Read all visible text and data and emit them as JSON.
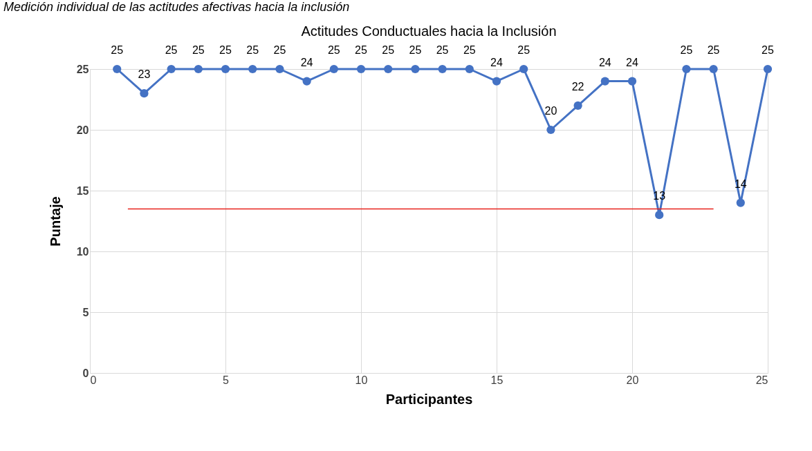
{
  "chart_data": {
    "type": "line",
    "title": "Actitudes Conductuales hacia la Inclusión",
    "xlabel": "Participantes",
    "ylabel": "Puntaje",
    "annotations": [
      "Medición individual de las actitudes afectivas hacia la inclusión"
    ],
    "x": [
      1,
      2,
      3,
      4,
      5,
      6,
      7,
      8,
      9,
      10,
      11,
      12,
      13,
      14,
      15,
      16,
      17,
      18,
      19,
      20,
      21,
      22,
      23,
      24,
      25
    ],
    "series": [
      {
        "color": "#4472c4",
        "values": [
          25,
          23,
          25,
          25,
          25,
          25,
          25,
          24,
          25,
          25,
          25,
          25,
          25,
          25,
          24,
          25,
          20,
          22,
          24,
          24,
          13,
          25,
          25,
          14,
          25
        ]
      },
      {
        "type": "line",
        "color": "#e8221c",
        "x": [
          1.4,
          23
        ],
        "values": [
          13.5,
          13.5
        ],
        "value_labels": [
          null,
          null
        ],
        "marker": "none"
      }
    ],
    "data_labels": true,
    "marker": "circle",
    "line_style": "solid",
    "grid": true,
    "xlim": [
      0,
      25
    ],
    "xticks": [
      0,
      5,
      10,
      15,
      20,
      25
    ],
    "ylim": [
      0,
      25
    ],
    "yticks": [
      0,
      5,
      10,
      15,
      20,
      25
    ]
  }
}
